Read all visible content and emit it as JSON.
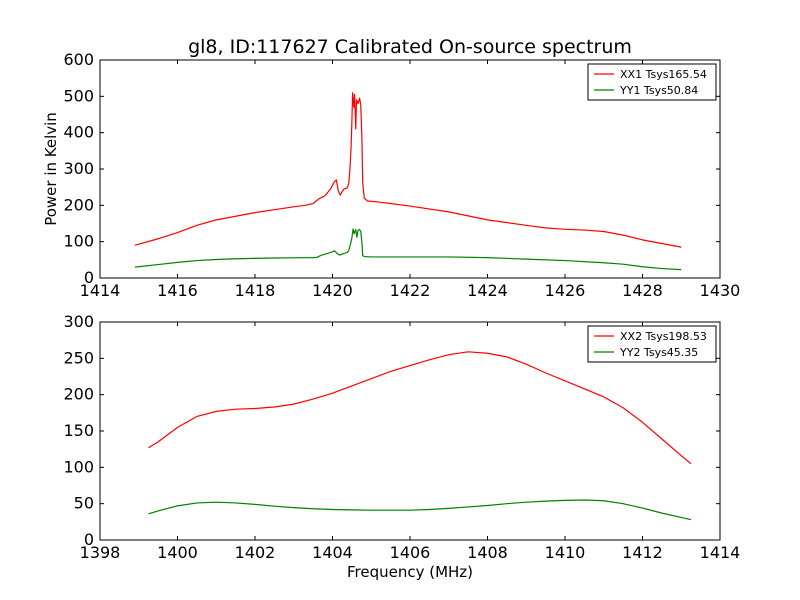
{
  "chart_data": [
    {
      "type": "line",
      "title": "gl8, ID:117627 Calibrated On-source spectrum",
      "xlabel": "",
      "ylabel": "Power in Kelvin",
      "xlim": [
        1414,
        1430
      ],
      "ylim": [
        0,
        600
      ],
      "xticks": [
        1414,
        1416,
        1418,
        1420,
        1422,
        1424,
        1426,
        1428,
        1430
      ],
      "yticks": [
        0,
        100,
        200,
        300,
        400,
        500,
        600
      ],
      "legend_position": "top-right",
      "series": [
        {
          "name": "XX1 Tsys165.54",
          "color": "#ff0000",
          "points": [
            [
              1414.9,
              90
            ],
            [
              1415.5,
              108
            ],
            [
              1416.0,
              125
            ],
            [
              1416.5,
              145
            ],
            [
              1417.0,
              160
            ],
            [
              1417.5,
              170
            ],
            [
              1418.0,
              180
            ],
            [
              1418.5,
              188
            ],
            [
              1419.0,
              196
            ],
            [
              1419.3,
              200
            ],
            [
              1419.5,
              205
            ],
            [
              1419.65,
              218
            ],
            [
              1419.8,
              226
            ],
            [
              1419.95,
              245
            ],
            [
              1420.05,
              265
            ],
            [
              1420.1,
              270
            ],
            [
              1420.15,
              240
            ],
            [
              1420.2,
              228
            ],
            [
              1420.25,
              238
            ],
            [
              1420.3,
              245
            ],
            [
              1420.38,
              248
            ],
            [
              1420.42,
              260
            ],
            [
              1420.45,
              300
            ],
            [
              1420.48,
              360
            ],
            [
              1420.5,
              430
            ],
            [
              1420.52,
              510
            ],
            [
              1420.55,
              470
            ],
            [
              1420.57,
              505
            ],
            [
              1420.6,
              410
            ],
            [
              1420.62,
              490
            ],
            [
              1420.66,
              480
            ],
            [
              1420.7,
              495
            ],
            [
              1420.73,
              475
            ],
            [
              1420.76,
              380
            ],
            [
              1420.78,
              260
            ],
            [
              1420.82,
              220
            ],
            [
              1420.9,
              212
            ],
            [
              1421.2,
              209
            ],
            [
              1421.5,
              205
            ],
            [
              1422.0,
              198
            ],
            [
              1423.0,
              182
            ],
            [
              1424.0,
              160
            ],
            [
              1425.0,
              145
            ],
            [
              1425.5,
              138
            ],
            [
              1426.0,
              134
            ],
            [
              1426.5,
              132
            ],
            [
              1427.0,
              128
            ],
            [
              1427.5,
              118
            ],
            [
              1428.0,
              105
            ],
            [
              1428.5,
              95
            ],
            [
              1429.0,
              85
            ]
          ]
        },
        {
          "name": "YY1 Tsys50.84",
          "color": "#008000",
          "points": [
            [
              1414.9,
              30
            ],
            [
              1415.5,
              37
            ],
            [
              1416.0,
              43
            ],
            [
              1416.5,
              48
            ],
            [
              1417.0,
              51
            ],
            [
              1417.5,
              53
            ],
            [
              1418.0,
              54
            ],
            [
              1418.5,
              55
            ],
            [
              1419.0,
              55.5
            ],
            [
              1419.5,
              56
            ],
            [
              1419.6,
              57
            ],
            [
              1419.7,
              62
            ],
            [
              1419.85,
              67
            ],
            [
              1420.0,
              72
            ],
            [
              1420.05,
              75
            ],
            [
              1420.12,
              68
            ],
            [
              1420.18,
              63
            ],
            [
              1420.25,
              66
            ],
            [
              1420.3,
              68
            ],
            [
              1420.38,
              70
            ],
            [
              1420.42,
              76
            ],
            [
              1420.45,
              88
            ],
            [
              1420.5,
              110
            ],
            [
              1420.53,
              135
            ],
            [
              1420.56,
              122
            ],
            [
              1420.6,
              133
            ],
            [
              1420.63,
              112
            ],
            [
              1420.66,
              132
            ],
            [
              1420.7,
              133
            ],
            [
              1420.73,
              128
            ],
            [
              1420.76,
              95
            ],
            [
              1420.78,
              62
            ],
            [
              1420.82,
              59
            ],
            [
              1421.0,
              58
            ],
            [
              1422.0,
              58
            ],
            [
              1423.0,
              58
            ],
            [
              1424.0,
              56
            ],
            [
              1425.0,
              52
            ],
            [
              1426.0,
              48
            ],
            [
              1427.0,
              42
            ],
            [
              1427.5,
              38
            ],
            [
              1428.0,
              31
            ],
            [
              1428.5,
              26
            ],
            [
              1429.0,
              23
            ]
          ]
        }
      ]
    },
    {
      "type": "line",
      "title": "",
      "xlabel": "Frequency (MHz)",
      "ylabel": "",
      "xlim": [
        1398,
        1414
      ],
      "ylim": [
        0,
        300
      ],
      "xticks": [
        1398,
        1400,
        1402,
        1404,
        1406,
        1408,
        1410,
        1412,
        1414
      ],
      "yticks": [
        0,
        50,
        100,
        150,
        200,
        250,
        300
      ],
      "legend_position": "top-right",
      "series": [
        {
          "name": "XX2 Tsys198.53",
          "color": "#ff0000",
          "points": [
            [
              1399.25,
              127
            ],
            [
              1399.5,
              135
            ],
            [
              1400.0,
              155
            ],
            [
              1400.5,
              170
            ],
            [
              1401.0,
              177
            ],
            [
              1401.5,
              180
            ],
            [
              1402.0,
              181
            ],
            [
              1402.5,
              183
            ],
            [
              1403.0,
              187
            ],
            [
              1403.5,
              194
            ],
            [
              1404.0,
              202
            ],
            [
              1404.5,
              212
            ],
            [
              1405.0,
              222
            ],
            [
              1405.5,
              232
            ],
            [
              1406.0,
              240
            ],
            [
              1406.5,
              248
            ],
            [
              1407.0,
              255
            ],
            [
              1407.5,
              259
            ],
            [
              1408.0,
              257
            ],
            [
              1408.5,
              252
            ],
            [
              1409.0,
              242
            ],
            [
              1409.5,
              230
            ],
            [
              1410.0,
              219
            ],
            [
              1410.5,
              208
            ],
            [
              1411.0,
              197
            ],
            [
              1411.5,
              182
            ],
            [
              1412.0,
              162
            ],
            [
              1412.5,
              139
            ],
            [
              1413.0,
              116
            ],
            [
              1413.25,
              105
            ]
          ]
        },
        {
          "name": "YY2 Tsys45.35",
          "color": "#008000",
          "points": [
            [
              1399.25,
              36
            ],
            [
              1399.5,
              40
            ],
            [
              1400.0,
              47
            ],
            [
              1400.5,
              51
            ],
            [
              1401.0,
              52
            ],
            [
              1401.5,
              51
            ],
            [
              1402.0,
              49
            ],
            [
              1402.5,
              46.5
            ],
            [
              1403.0,
              44.5
            ],
            [
              1403.5,
              43
            ],
            [
              1404.0,
              42
            ],
            [
              1404.5,
              41.5
            ],
            [
              1405.0,
              41
            ],
            [
              1405.5,
              41
            ],
            [
              1406.0,
              41
            ],
            [
              1406.5,
              42
            ],
            [
              1407.0,
              43.5
            ],
            [
              1407.5,
              45.5
            ],
            [
              1408.0,
              47.5
            ],
            [
              1408.5,
              50
            ],
            [
              1409.0,
              52
            ],
            [
              1409.5,
              53.5
            ],
            [
              1410.0,
              54.5
            ],
            [
              1410.5,
              55
            ],
            [
              1411.0,
              54
            ],
            [
              1411.5,
              50
            ],
            [
              1412.0,
              44
            ],
            [
              1412.5,
              37
            ],
            [
              1413.0,
              31
            ],
            [
              1413.25,
              28
            ]
          ]
        }
      ]
    }
  ]
}
